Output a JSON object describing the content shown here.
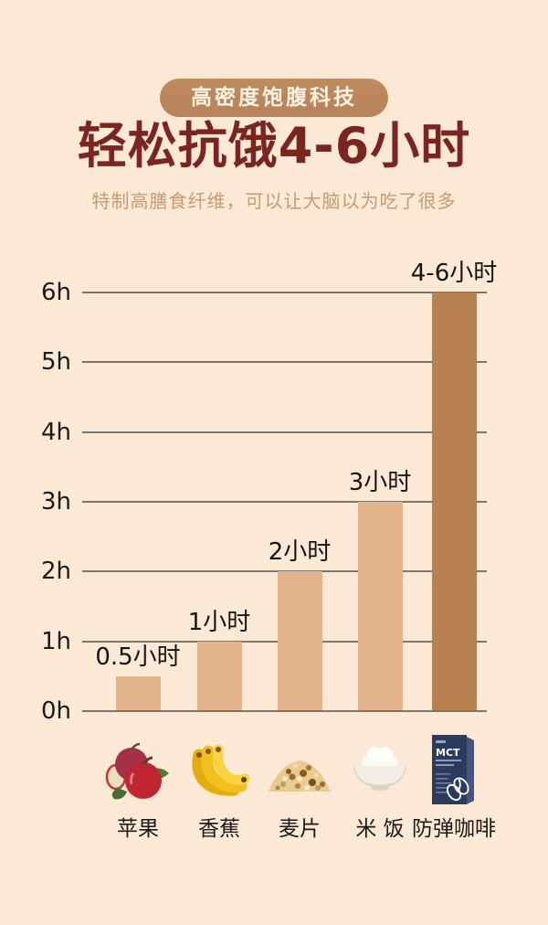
{
  "header": {
    "badge": "高密度饱腹科技",
    "title": "轻松抗饿4-6小时",
    "subtitle": "特制高膳食纤维，可以让大脑以为吃了很多"
  },
  "chart_data": {
    "type": "bar",
    "categories": [
      "苹果",
      "香蕉",
      "麦片",
      "米 饭",
      "防弹咖啡"
    ],
    "values": [
      0.5,
      1,
      2,
      3,
      6
    ],
    "value_labels": [
      "0.5小时",
      "1小时",
      "2小时",
      "3小时",
      "4-6小时"
    ],
    "unit": "小时",
    "y_ticks": [
      "0h",
      "1h",
      "2h",
      "3h",
      "4h",
      "5h",
      "6h"
    ],
    "ylim": [
      0,
      6
    ],
    "grid": true,
    "legend": false,
    "bar_colors": [
      "#e3b38c",
      "#e3b38c",
      "#e3b38c",
      "#e3b38c",
      "#b9814f"
    ],
    "icons": [
      "apple-icon",
      "banana-icon",
      "oatmeal-icon",
      "rice-bowl-icon",
      "coffee-box-icon"
    ],
    "coffee_box_label": "MCT"
  },
  "colors": {
    "background": "#fbe8d5",
    "badge_bg": "#b7835a",
    "badge_text": "#fdf3e4",
    "title": "#7b2521",
    "subtitle": "#c69a72",
    "bar_light": "#e3b38c",
    "bar_dark": "#b9814f",
    "gridline": "#7b776f",
    "text": "#1c1b19"
  }
}
